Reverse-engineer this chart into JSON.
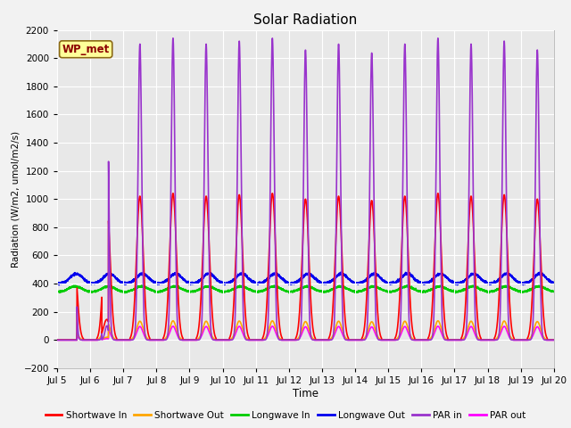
{
  "title": "Solar Radiation",
  "xlabel": "Time",
  "ylabel": "Radiation (W/m2, umol/m2/s)",
  "ylim": [
    -200,
    2200
  ],
  "yticks": [
    -200,
    0,
    200,
    400,
    600,
    800,
    1000,
    1200,
    1400,
    1600,
    1800,
    2000,
    2200
  ],
  "annotation_text": "WP_met",
  "annotation_color": "#8B0000",
  "annotation_bg": "#FFFF99",
  "annotation_border": "#8B6914",
  "background_color": "#E8E8E8",
  "fig_bg": "#F2F2F2",
  "series": {
    "Shortwave In": {
      "color": "#FF0000",
      "lw": 1.2
    },
    "Shortwave Out": {
      "color": "#FFA500",
      "lw": 1.2
    },
    "Longwave In": {
      "color": "#00CC00",
      "lw": 1.2
    },
    "Longwave Out": {
      "color": "#0000EE",
      "lw": 1.2
    },
    "PAR in": {
      "color": "#9933CC",
      "lw": 1.2
    },
    "PAR out": {
      "color": "#FF00FF",
      "lw": 1.2
    }
  },
  "x_start": 5,
  "x_end": 20,
  "xtick_labels": [
    "Jul 5",
    "Jul 6",
    "Jul 7",
    "Jul 8",
    "Jul 9",
    "Jul 10",
    "Jul 11",
    "Jul 12",
    "Jul 13",
    "Jul 14",
    "Jul 15",
    "Jul 16",
    "Jul 17",
    "Jul 18",
    "Jul 19",
    "Jul 20"
  ],
  "xtick_positions": [
    5,
    6,
    7,
    8,
    9,
    10,
    11,
    12,
    13,
    14,
    15,
    16,
    17,
    18,
    19,
    20
  ]
}
